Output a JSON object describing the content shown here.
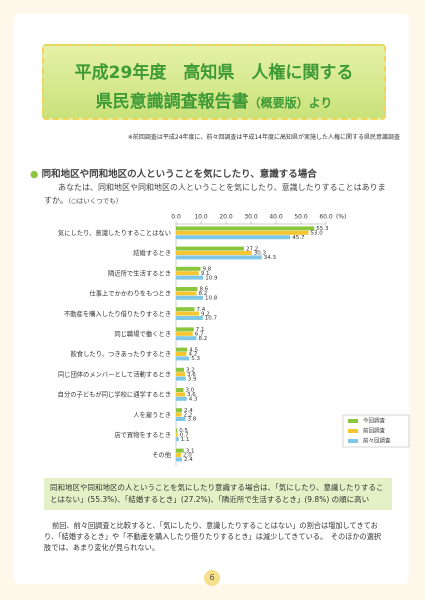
{
  "header": {
    "title_line1": "平成29年度　高知県　人権に関する",
    "title_line2": "県民意識調査報告書",
    "title_suffix": "（概要版）より"
  },
  "note": "※前回調査は平成24年度に、前々回調査は平成14年度に高知県が実施した人権に関する県民意識調査",
  "section": {
    "heading": "同和地区や同和地区の人ということを気にしたり、意識する場合",
    "question": "あなたは、同和地区や同和地区の人ということを気にしたり、意識したりすることはありますか。",
    "question_note": "（○はいくつでも）"
  },
  "chart_data": {
    "type": "hbar",
    "x_unit": "(%)",
    "categories": [
      "気にしたり、意識したりすることはない",
      "結婚するとき",
      "隣近所で生活するとき",
      "仕事上でかかわりをもつとき",
      "不動産を購入したり借りたりするとき",
      "同じ職場で働くとき",
      "飲食したり、つきあったりするとき",
      "同じ団体のメンバーとして活動するとき",
      "自分の子どもが同じ学校に通学するとき",
      "人を雇うとき",
      "店で買物をするとき",
      "その他"
    ],
    "series": [
      {
        "name": "今回調査",
        "color": "#8cc63e",
        "values": [
          55.3,
          27.2,
          9.8,
          8.6,
          7.4,
          7.1,
          4.5,
          3.2,
          3,
          2.4,
          0.5,
          3.1
        ],
        "value_labels": [
          "55.3",
          "27.2",
          "9.8",
          "8.6",
          "7.4",
          "7.1",
          "4.5",
          "3.2",
          "3.0",
          "2.4",
          "0.5",
          "3.1"
        ]
      },
      {
        "name": "前回調査",
        "color": "#f6c530",
        "values": [
          53,
          30.3,
          9.1,
          8.2,
          9.2,
          6.7,
          4.2,
          3.6,
          3.6,
          2.2,
          0.7,
          2
        ],
        "value_labels": [
          "53.0",
          "30.3",
          "9.1",
          "8.2",
          "9.2",
          "6.7",
          "4.2",
          "3.6",
          "3.6",
          "2.2",
          "0.7",
          "2.0"
        ]
      },
      {
        "name": "前々回調査",
        "color": "#7ec7e6",
        "values": [
          45.7,
          34.3,
          10.9,
          10.8,
          10.7,
          8.2,
          5.3,
          3.9,
          4.3,
          3.8,
          1.1,
          2.4
        ],
        "value_labels": [
          "45.7",
          "34.3",
          "10.9",
          "10.8",
          "10.7",
          "8.2",
          "5.3",
          "3.9",
          "4.3",
          "3.8",
          "1.1",
          "2.4"
        ]
      }
    ],
    "xlim": [
      0,
      60
    ],
    "xticks": [
      {
        "value": 0,
        "label": "0.0"
      },
      {
        "value": 10,
        "label": "10.0"
      },
      {
        "value": 20,
        "label": "20.0"
      },
      {
        "value": 30,
        "label": "30.0"
      },
      {
        "value": 40,
        "label": "40.0"
      },
      {
        "value": 50,
        "label": "50.0"
      },
      {
        "value": 60,
        "label": "60.0"
      }
    ],
    "legend": "lower right"
  },
  "summary": "同和地区や同和地区の人ということを気にしたり意識する場合は、「気にしたり、意識したりすることはない」(55.3%)、「結婚するとき」(27.2%)、「隣近所で生活するとき」(9.8%) の順に高い",
  "paragraph": "前回、前々回調査と比較すると、「気にしたり、意識したりすることはない」の割合は増加してきており、「結婚するとき」や「不動産を購入したり借りたりするとき」は減少してきている。　そのほかの選択肢では、あまり変化が見られない。",
  "page_number": "6"
}
